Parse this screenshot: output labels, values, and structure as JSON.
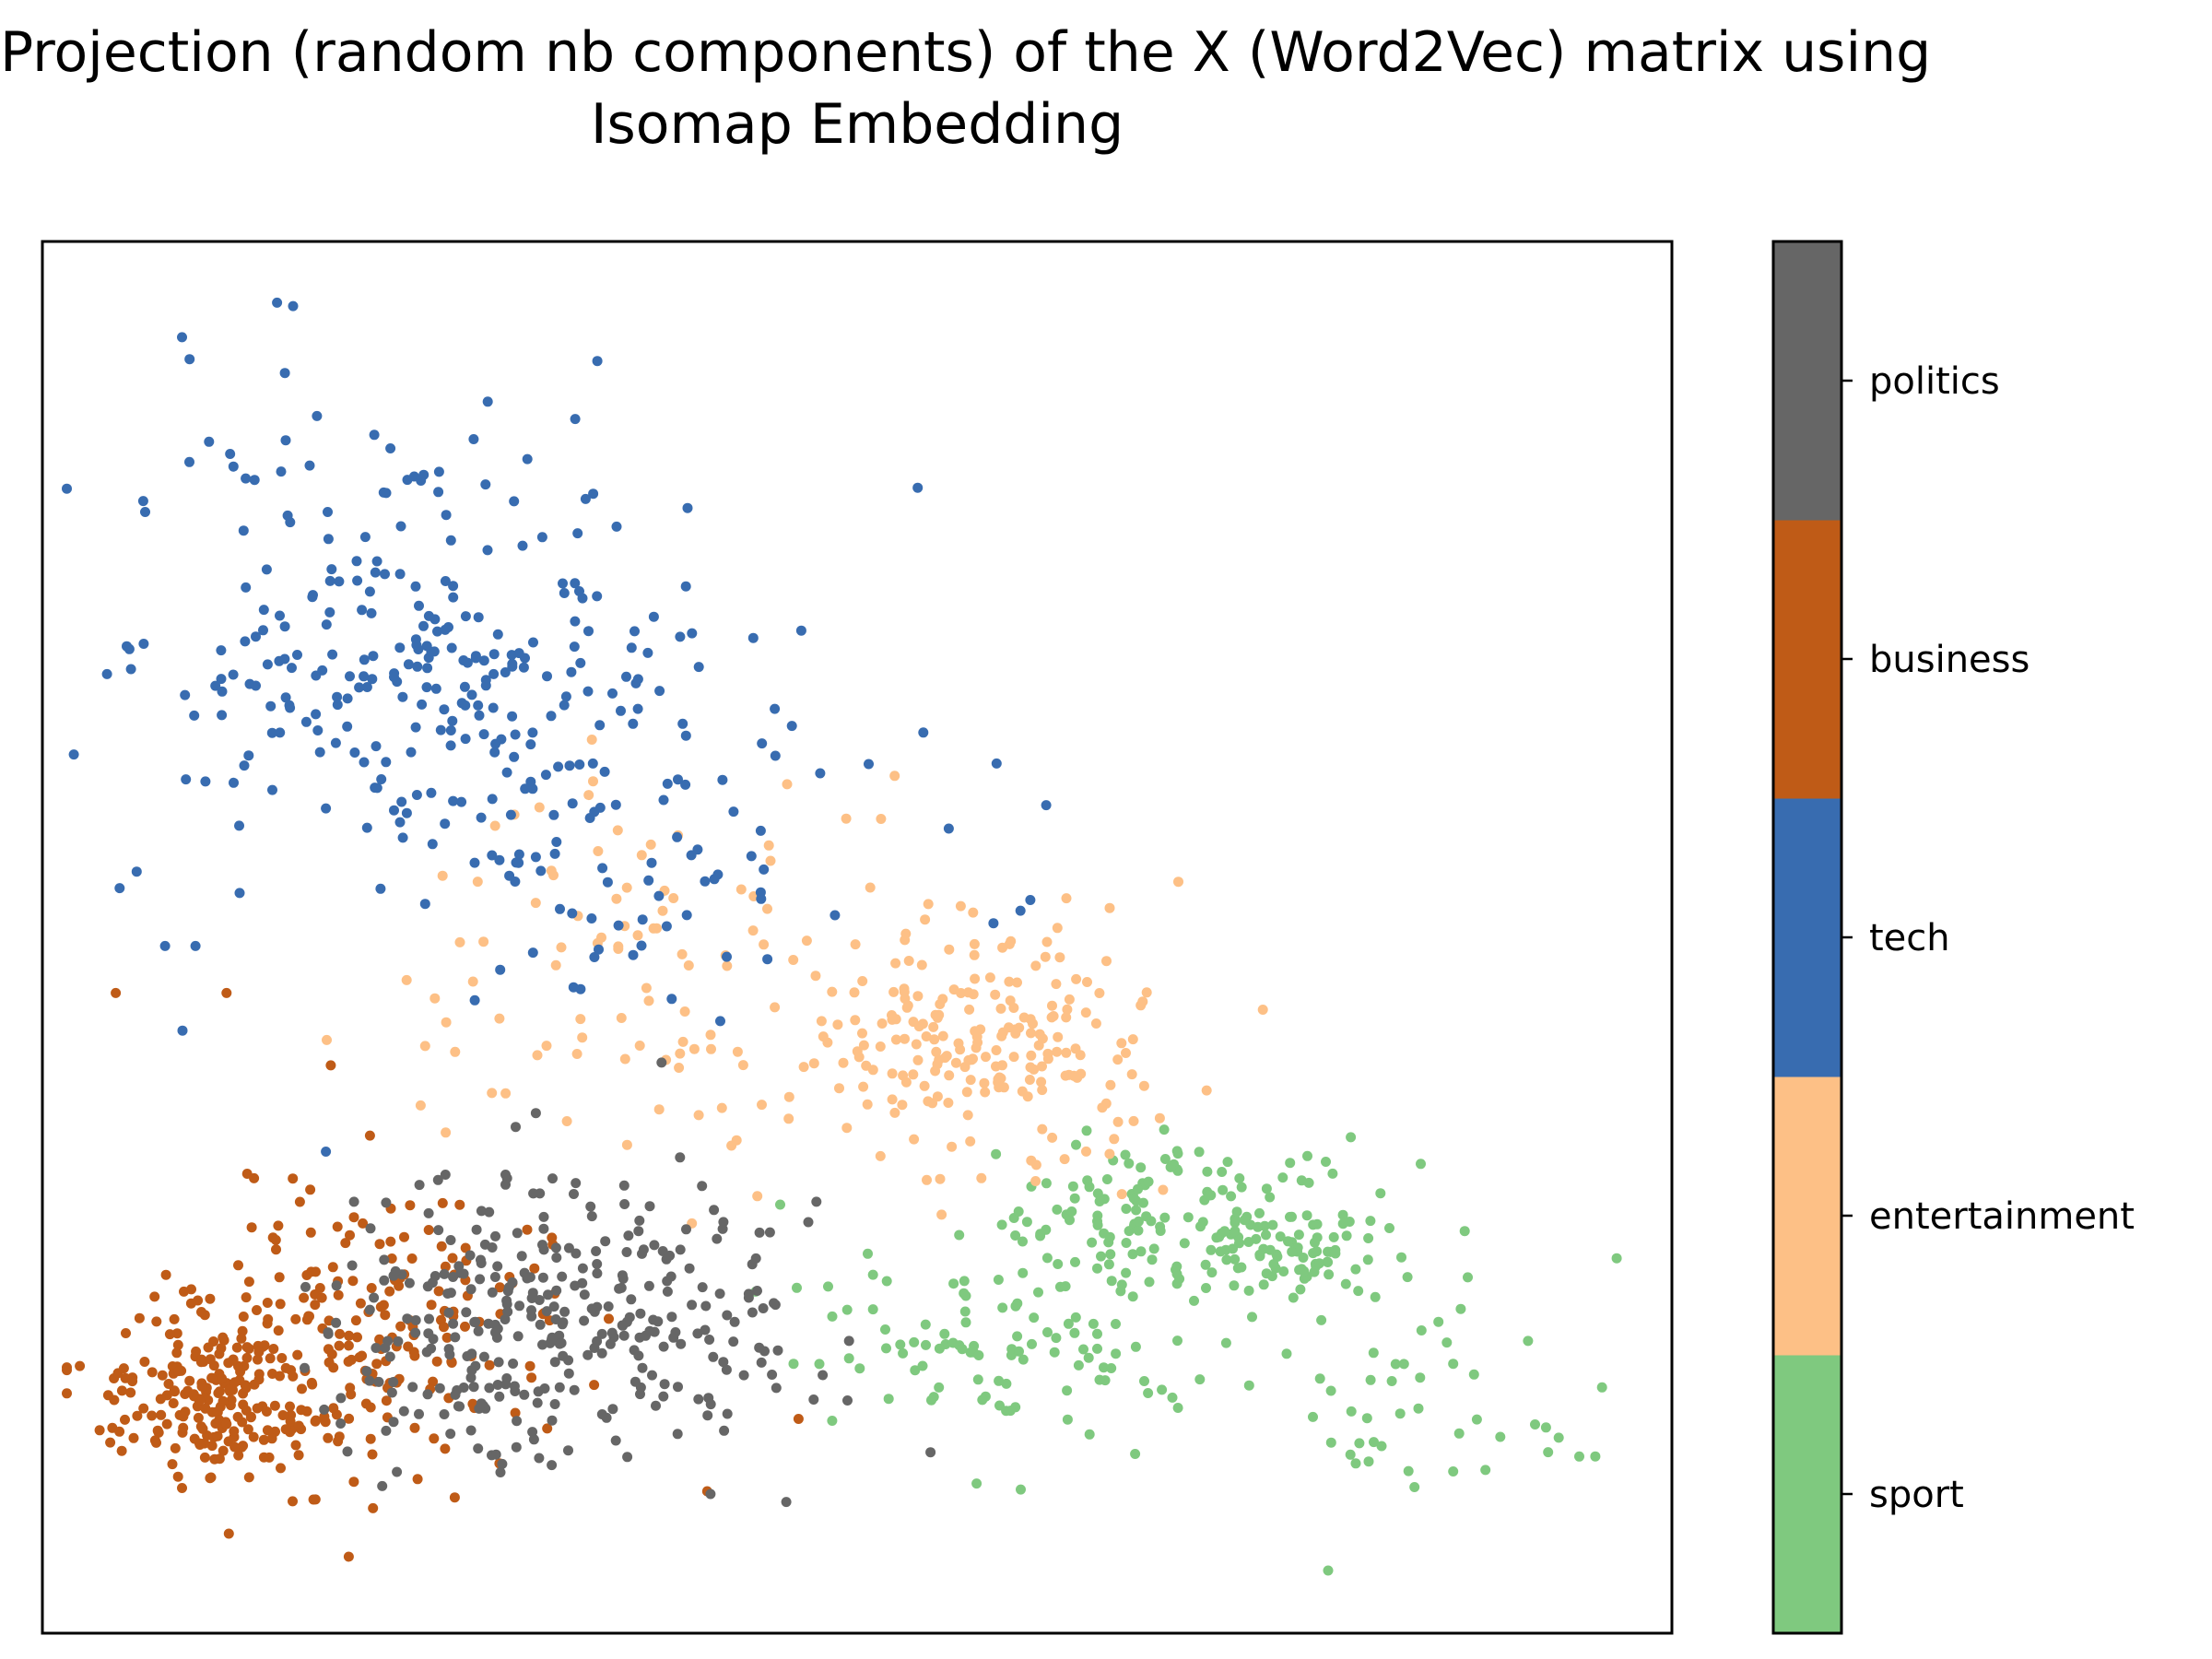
{
  "chart_data": {
    "type": "scatter",
    "title_lines": [
      "Projection (random nb components) of the X (Word2Vec) matrix using",
      "Isomap Embedding"
    ],
    "xlabel": "",
    "ylabel": "",
    "xlim": [
      0,
      100
    ],
    "ylim": [
      0,
      100
    ],
    "axis_ticks": "none",
    "grid": false,
    "colorbar": {
      "labels": [
        "sport",
        "entertainment",
        "tech",
        "business",
        "politics"
      ],
      "colors": [
        "#7fc97f",
        "#fdc086",
        "#386cb0",
        "#bf5b17",
        "#666666"
      ]
    },
    "series": [
      {
        "name": "sport",
        "color": "#7fc97f",
        "n": 360,
        "clusters": [
          {
            "cx": 70,
            "cy": 30,
            "sx": 6.5,
            "sy": 3.0,
            "w": 0.45
          },
          {
            "cx": 59,
            "cy": 20,
            "sx": 7.0,
            "sy": 3.5,
            "w": 0.3
          },
          {
            "cx": 78,
            "cy": 27,
            "sx": 3.0,
            "sy": 1.5,
            "w": 0.15
          },
          {
            "cx": 84,
            "cy": 16,
            "sx": 6.0,
            "sy": 3.0,
            "w": 0.1
          }
        ],
        "extra_points": [
          [
            95.3,
            12.7
          ],
          [
            78.9,
            4.5
          ],
          [
            91.6,
            15.0
          ],
          [
            80.6,
            12.2
          ],
          [
            84.2,
            10.5
          ]
        ]
      },
      {
        "name": "entertainment",
        "color": "#fdc086",
        "n": 310,
        "clusters": [
          {
            "cx": 57,
            "cy": 42,
            "sx": 5.5,
            "sy": 4.5,
            "w": 0.7
          },
          {
            "cx": 37,
            "cy": 47,
            "sx": 8.0,
            "sy": 7.0,
            "w": 0.3
          }
        ],
        "extra_points": [
          [
            74.9,
            44.8
          ],
          [
            65.3,
            48.3
          ],
          [
            52.3,
            61.6
          ],
          [
            45.7,
            61.0
          ]
        ]
      },
      {
        "name": "tech",
        "color": "#386cb0",
        "n": 350,
        "clusters": [
          {
            "cx": 24,
            "cy": 69,
            "sx": 9.5,
            "sy": 9.0,
            "w": 0.85
          },
          {
            "cx": 39,
            "cy": 56,
            "sx": 9.0,
            "sy": 6.0,
            "w": 0.15
          }
        ],
        "extra_points": [
          [
            14.4,
            95.6
          ],
          [
            16.4,
            83.9
          ],
          [
            24.3,
            82.0
          ],
          [
            61.6,
            59.5
          ],
          [
            8.6,
            43.3
          ],
          [
            17.4,
            34.6
          ]
        ]
      },
      {
        "name": "business",
        "color": "#bf5b17",
        "n": 400,
        "clusters": [
          {
            "cx": 11,
            "cy": 17,
            "sx": 4.0,
            "sy": 3.5,
            "w": 0.55
          },
          {
            "cx": 21,
            "cy": 22,
            "sx": 5.5,
            "sy": 5.0,
            "w": 0.45
          }
        ],
        "extra_points": [
          [
            4.5,
            46.0
          ],
          [
            11.3,
            46.0
          ],
          [
            17.7,
            40.8
          ],
          [
            18.8,
            5.5
          ],
          [
            40.8,
            10.2
          ],
          [
            46.4,
            15.4
          ]
        ]
      },
      {
        "name": "politics",
        "color": "#666666",
        "n": 330,
        "clusters": [
          {
            "cx": 33,
            "cy": 23,
            "sx": 6.0,
            "sy": 5.0,
            "w": 0.8
          },
          {
            "cx": 24,
            "cy": 20,
            "sx": 4.0,
            "sy": 5.0,
            "w": 0.2
          }
        ],
        "extra_points": [
          [
            49.5,
            21.0
          ],
          [
            54.5,
            13.0
          ],
          [
            41.0,
            10.0
          ],
          [
            38.0,
            41.0
          ],
          [
            47.5,
            31.0
          ]
        ]
      }
    ]
  }
}
